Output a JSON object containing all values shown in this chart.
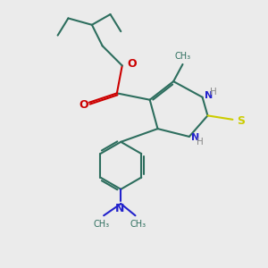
{
  "bg_color": "#ebebeb",
  "bond_color": "#2d6e5e",
  "n_color": "#2222cc",
  "o_color": "#cc0000",
  "s_color": "#cccc00",
  "h_color": "#888888",
  "line_width": 1.5,
  "fig_size": [
    3.0,
    3.0
  ],
  "dpi": 100,
  "xlim": [
    0,
    10
  ],
  "ylim": [
    0,
    10
  ]
}
